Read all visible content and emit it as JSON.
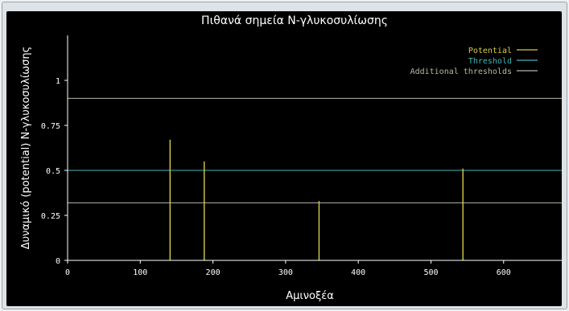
{
  "chart_data": {
    "type": "bar",
    "title": "Πιθανά σημεία Ν-γλυκοσυλίωσης",
    "xlabel": "Αμινοξέα",
    "ylabel": "Δυναμικό (potential) Ν-γλυκοσυλίωσης",
    "xlim": [
      0,
      680
    ],
    "ylim": [
      0,
      1.25
    ],
    "x_ticks": [
      0,
      100,
      200,
      300,
      400,
      500,
      600
    ],
    "y_ticks": [
      0,
      0.25,
      0.5,
      0.75,
      1
    ],
    "y_tick_labels": [
      "0",
      "0.25",
      "0.5",
      "0.75",
      "1"
    ],
    "series": [
      {
        "name": "Potential",
        "color": "#d6cc48",
        "points": [
          {
            "x": 141,
            "y": 0.67
          },
          {
            "x": 188,
            "y": 0.55
          },
          {
            "x": 346,
            "y": 0.33
          },
          {
            "x": 544,
            "y": 0.51
          }
        ]
      }
    ],
    "threshold": {
      "name": "Threshold",
      "value": 0.5,
      "color": "#46b6b8"
    },
    "additional_thresholds": {
      "name": "Additional thresholds",
      "values": [
        0.32,
        0.9
      ],
      "color": "#b8b6a4"
    },
    "legend": [
      {
        "label": "Potential",
        "color": "#d6cc48"
      },
      {
        "label": "Threshold",
        "color": "#46b6b8"
      },
      {
        "label": "Additional thresholds",
        "color": "#b8b6a4"
      }
    ],
    "legend_position": "top-right",
    "grid": false
  }
}
